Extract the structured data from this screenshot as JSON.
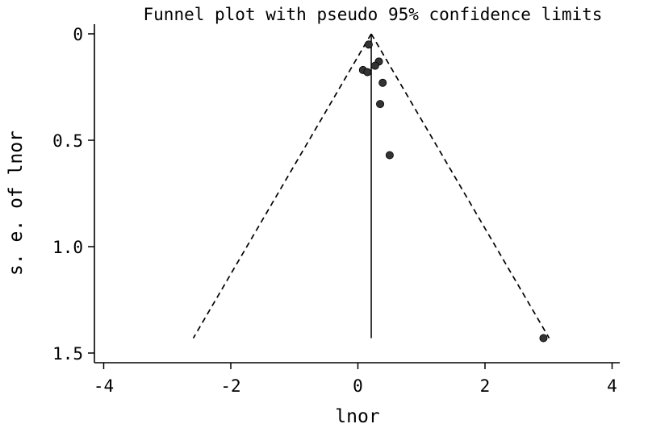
{
  "chart_data": {
    "type": "scatter",
    "title": "Funnel plot with pseudo 95% confidence limits",
    "xlabel": "lnor",
    "ylabel": "s. e.  of lnor",
    "xlim": [
      -4.2,
      4.2
    ],
    "ylim": [
      0,
      1.55
    ],
    "y_inverted": true,
    "grid": false,
    "x_ticks": [
      -4,
      -2,
      0,
      2,
      4
    ],
    "x_tick_labels": [
      "-4",
      "-2",
      "0",
      "2",
      "4"
    ],
    "y_ticks": [
      0,
      0.5,
      1.0,
      1.5
    ],
    "y_tick_labels": [
      "0",
      "0.5",
      "1.0",
      "1.5"
    ],
    "points": [
      {
        "x": 0.17,
        "y": 0.05
      },
      {
        "x": 0.33,
        "y": 0.13
      },
      {
        "x": 0.27,
        "y": 0.15
      },
      {
        "x": 0.08,
        "y": 0.17
      },
      {
        "x": 0.15,
        "y": 0.18
      },
      {
        "x": 0.39,
        "y": 0.23
      },
      {
        "x": 0.35,
        "y": 0.33
      },
      {
        "x": 0.5,
        "y": 0.57
      },
      {
        "x": 2.92,
        "y": 1.43
      }
    ],
    "pooled_estimate": 0.21,
    "reference_line": {
      "x": 0.21,
      "y_from": 0,
      "y_to": 1.43
    },
    "confidence_limits": {
      "apex": {
        "x": 0.21,
        "y": 0
      },
      "left_end": {
        "x": -2.59,
        "y": 1.43
      },
      "right_end": {
        "x": 3.01,
        "y": 1.43
      }
    },
    "colors": {
      "points": "#333333",
      "lines": "#000000"
    }
  }
}
